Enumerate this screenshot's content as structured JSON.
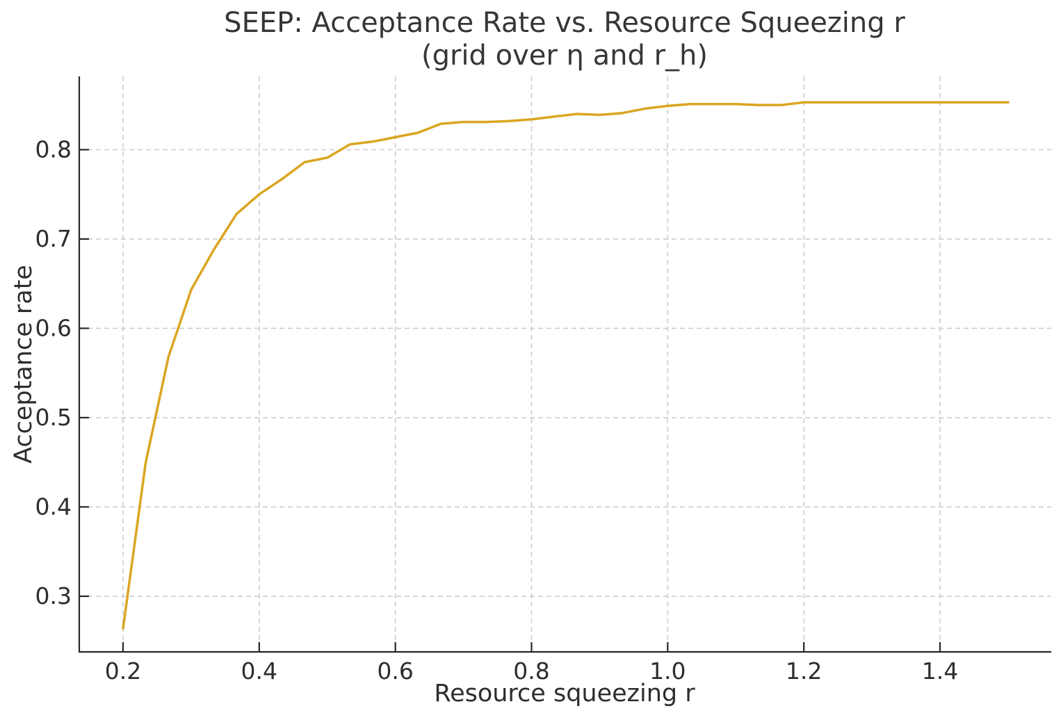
{
  "header": {
    "title_line1": "SEEP: Acceptance Rate vs. Resource Squeezing r",
    "title_line2": "(grid over η and r_h)"
  },
  "chart_data": {
    "type": "line",
    "title": "SEEP: Acceptance Rate vs. Resource Squeezing r (grid over η and r_h)",
    "xlabel": "Resource squeezing r",
    "ylabel": "Acceptance rate",
    "legend": "none",
    "grid": "dashed",
    "grid_color": "#cccccc",
    "axis_color": "#262626",
    "xlim": [
      0.1357,
      1.5634
    ],
    "ylim": [
      0.2377,
      0.882
    ],
    "xticks": [
      0.2,
      0.4,
      0.6,
      0.8,
      1.0,
      1.2,
      1.4
    ],
    "yticks": [
      0.3,
      0.4,
      0.5,
      0.6,
      0.7,
      0.8
    ],
    "series": [
      {
        "name": "acceptance-rate",
        "color": "#DAA520",
        "x": [
          0.2,
          0.2333,
          0.2667,
          0.3,
          0.3333,
          0.3667,
          0.4,
          0.4333,
          0.4667,
          0.5,
          0.5333,
          0.5667,
          0.6,
          0.6333,
          0.6667,
          0.7,
          0.7333,
          0.7667,
          0.8,
          0.8333,
          0.8667,
          0.9,
          0.9333,
          0.9667,
          1.0,
          1.0333,
          1.0667,
          1.1,
          1.1333,
          1.1667,
          1.2,
          1.2333,
          1.2667,
          1.3,
          1.3333,
          1.3667,
          1.4,
          1.4333,
          1.4667,
          1.5
        ],
        "y": [
          0.264,
          0.45,
          0.568,
          0.643,
          0.688,
          0.728,
          0.75,
          0.767,
          0.786,
          0.791,
          0.806,
          0.809,
          0.814,
          0.819,
          0.829,
          0.831,
          0.831,
          0.832,
          0.834,
          0.837,
          0.84,
          0.839,
          0.841,
          0.846,
          0.849,
          0.851,
          0.851,
          0.851,
          0.85,
          0.85,
          0.853,
          0.853,
          0.853,
          0.853,
          0.853,
          0.853,
          0.853,
          0.853,
          0.853,
          0.853
        ]
      }
    ]
  }
}
